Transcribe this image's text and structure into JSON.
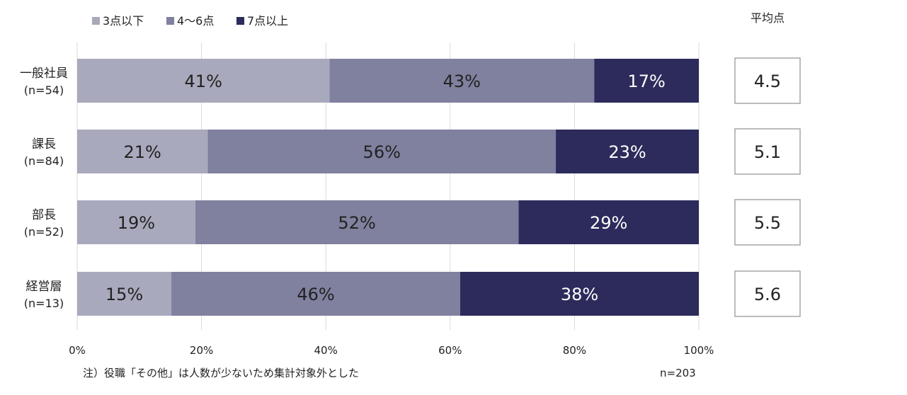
{
  "chart_data": {
    "type": "bar",
    "orientation": "horizontal",
    "stacked": true,
    "categories": [
      "一般社員",
      "課長",
      "部長",
      "経営層"
    ],
    "category_counts": [
      "(n=54)",
      "(n=84)",
      "(n=52)",
      "(n=13)"
    ],
    "series": [
      {
        "name": "3点以下",
        "color": "#a9a9bd",
        "label_color": "#222222",
        "values": [
          41,
          21,
          19,
          15
        ]
      },
      {
        "name": "4～6点",
        "color": "#80809f",
        "label_color": "#222222",
        "values": [
          43,
          56,
          52,
          46
        ]
      },
      {
        "name": "7点以上",
        "color": "#2c2b5b",
        "label_color": "#ffffff",
        "values": [
          17,
          23,
          29,
          38
        ]
      }
    ],
    "data_labels": [
      [
        "41%",
        "43%",
        "17%"
      ],
      [
        "21%",
        "56%",
        "23%"
      ],
      [
        "19%",
        "52%",
        "29%"
      ],
      [
        "15%",
        "46%",
        "38%"
      ]
    ],
    "xlim": [
      0,
      100
    ],
    "x_ticks": [
      0,
      20,
      40,
      60,
      80,
      100
    ],
    "x_tick_labels": [
      "0%",
      "20%",
      "40%",
      "60%",
      "80%",
      "100%"
    ],
    "grid": "vertical",
    "legend_position": "top-left",
    "average": {
      "title": "平均点",
      "values": [
        "4.5",
        "5.1",
        "5.5",
        "5.6"
      ]
    },
    "note": "注）役職「その他」は人数が少ないため集計対象外とした",
    "total_n": "n=203"
  }
}
